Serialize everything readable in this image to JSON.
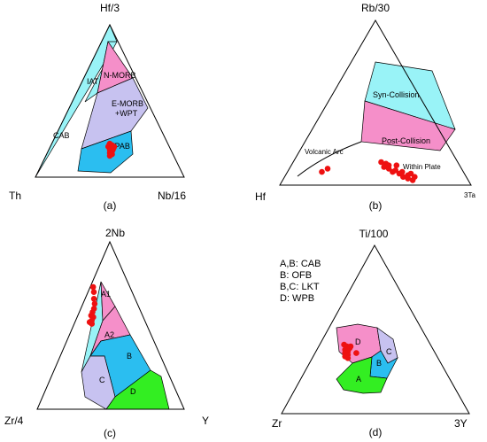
{
  "colors": {
    "cyan": "#99f3f7",
    "magenta": "#f58fc9",
    "lavender": "#c7c2f0",
    "blue": "#2bbef0",
    "green": "#33ee22",
    "points": "#ee1111",
    "axis": "#000000"
  },
  "chart_data": [
    {
      "type": "scatter",
      "diagram": "ternary",
      "panel_label": "(a)",
      "vertices": {
        "top": "Hf/3",
        "left": "Th",
        "right": "Nb/16"
      },
      "fields": [
        {
          "label": "CAB",
          "fill": "cyan"
        },
        {
          "label": "IAT",
          "fill": "cyan"
        },
        {
          "label": "N-MORB",
          "fill": "magenta"
        },
        {
          "label_lines": [
            "E-MORB",
            "+WPT"
          ],
          "fill": "lavender"
        },
        {
          "label": "WPAB",
          "fill": "blue"
        }
      ],
      "points_tlr": [
        [
          0.22,
          0.39,
          0.39
        ],
        [
          0.21,
          0.4,
          0.39
        ],
        [
          0.2,
          0.39,
          0.41
        ],
        [
          0.2,
          0.41,
          0.39
        ],
        [
          0.19,
          0.4,
          0.41
        ],
        [
          0.19,
          0.38,
          0.43
        ],
        [
          0.18,
          0.41,
          0.41
        ],
        [
          0.18,
          0.39,
          0.43
        ],
        [
          0.17,
          0.4,
          0.43
        ],
        [
          0.16,
          0.42,
          0.42
        ],
        [
          0.15,
          0.41,
          0.44
        ],
        [
          0.14,
          0.43,
          0.43
        ],
        [
          0.2,
          0.37,
          0.43
        ],
        [
          0.21,
          0.38,
          0.41
        ]
      ]
    },
    {
      "type": "scatter",
      "diagram": "ternary",
      "panel_label": "(b)",
      "vertices": {
        "top": "Rb/30",
        "left": "Hf",
        "right": "3Ta"
      },
      "fields": [
        {
          "label": "Syn-Collision",
          "fill": "cyan"
        },
        {
          "label": "Post-Collision",
          "fill": "magenta"
        }
      ],
      "region_labels": [
        "Volcanic Arc",
        "Within Plate"
      ],
      "points_tlr": [
        [
          0.14,
          0.4,
          0.46
        ],
        [
          0.13,
          0.38,
          0.49
        ],
        [
          0.12,
          0.37,
          0.51
        ],
        [
          0.11,
          0.4,
          0.49
        ],
        [
          0.1,
          0.38,
          0.52
        ],
        [
          0.09,
          0.35,
          0.56
        ],
        [
          0.08,
          0.37,
          0.55
        ],
        [
          0.08,
          0.32,
          0.6
        ],
        [
          0.07,
          0.34,
          0.59
        ],
        [
          0.06,
          0.3,
          0.64
        ],
        [
          0.05,
          0.33,
          0.62
        ],
        [
          0.07,
          0.28,
          0.65
        ],
        [
          0.04,
          0.31,
          0.65
        ],
        [
          0.05,
          0.27,
          0.68
        ],
        [
          0.1,
          0.7,
          0.2
        ],
        [
          0.08,
          0.74,
          0.18
        ],
        [
          0.12,
          0.33,
          0.55
        ],
        [
          0.03,
          0.29,
          0.68
        ]
      ]
    },
    {
      "type": "scatter",
      "diagram": "ternary",
      "panel_label": "(c)",
      "vertices": {
        "top": "2Nb",
        "left": "Zr/4",
        "right": "Y"
      },
      "fields": [
        {
          "label": "A1",
          "fill": "magenta"
        },
        {
          "label": "A2",
          "fill": "magenta"
        },
        {
          "label": "B",
          "fill": "blue"
        },
        {
          "label": "C",
          "fill": "lavender"
        },
        {
          "label": "D",
          "fill": "green"
        }
      ],
      "extra_fill": "cyan",
      "points_tlr": [
        [
          0.73,
          0.25,
          0.02
        ],
        [
          0.7,
          0.26,
          0.04
        ],
        [
          0.66,
          0.28,
          0.06
        ],
        [
          0.63,
          0.29,
          0.08
        ],
        [
          0.6,
          0.31,
          0.09
        ],
        [
          0.58,
          0.33,
          0.09
        ],
        [
          0.56,
          0.35,
          0.09
        ],
        [
          0.55,
          0.34,
          0.11
        ],
        [
          0.53,
          0.36,
          0.11
        ],
        [
          0.52,
          0.38,
          0.1
        ],
        [
          0.51,
          0.37,
          0.12
        ]
      ]
    },
    {
      "type": "scatter",
      "diagram": "ternary",
      "panel_label": "(d)",
      "vertices": {
        "top": "Ti/100",
        "left": "Zr",
        "right": "3Y"
      },
      "legend": [
        "A,B: CAB",
        "B: OFB",
        "B,C: LKT",
        "D: WPB"
      ],
      "fields": [
        {
          "label": "D",
          "fill": "magenta"
        },
        {
          "label": "C",
          "fill": "lavender"
        },
        {
          "label": "B",
          "fill": "blue"
        },
        {
          "label": "A",
          "fill": "green"
        }
      ],
      "points_tlr": [
        [
          0.41,
          0.46,
          0.13
        ],
        [
          0.4,
          0.45,
          0.15
        ],
        [
          0.4,
          0.43,
          0.17
        ],
        [
          0.39,
          0.44,
          0.17
        ],
        [
          0.38,
          0.47,
          0.15
        ],
        [
          0.37,
          0.46,
          0.17
        ],
        [
          0.36,
          0.48,
          0.16
        ],
        [
          0.35,
          0.47,
          0.18
        ],
        [
          0.34,
          0.49,
          0.17
        ],
        [
          0.33,
          0.48,
          0.19
        ],
        [
          0.36,
          0.42,
          0.22
        ]
      ]
    }
  ]
}
